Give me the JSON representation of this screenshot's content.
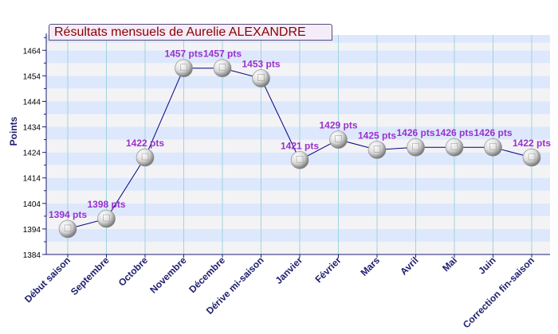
{
  "chart_data": {
    "type": "line",
    "title": "Résultats mensuels de Aurelie ALEXANDRE",
    "ylabel": "Points",
    "xlabel": "",
    "ylim": [
      1384,
      1470
    ],
    "yticks": [
      1384,
      1394,
      1404,
      1414,
      1424,
      1434,
      1444,
      1454,
      1464
    ],
    "categories": [
      "Début saison",
      "Septembre",
      "Octobre",
      "Novembre",
      "Décembre",
      "Dérive mi-saison",
      "Janvier",
      "Février",
      "Mars",
      "Avril",
      "Mai",
      "Juin",
      "Correction fin-saison"
    ],
    "values": [
      1394,
      1398,
      1422,
      1457,
      1457,
      1453,
      1421,
      1429,
      1425,
      1426,
      1426,
      1426,
      1422
    ],
    "data_labels": [
      "1394 pts",
      "1398 pts",
      "1422 pts",
      "1457 pts",
      "1457 pts",
      "1453 pts",
      "1421 pts",
      "1429 pts",
      "1425 pts",
      "1426 pts",
      "1426 pts",
      "1426 pts",
      "1422 pts"
    ],
    "grid": true,
    "colors": {
      "line": "#000080",
      "label": "#9932cc",
      "axis_text": "#1e1e6e",
      "band_a": "#dde8fc",
      "band_b": "#f3f3f6",
      "vgrid": "#9fd3dd",
      "title_text": "#8b0000"
    }
  }
}
